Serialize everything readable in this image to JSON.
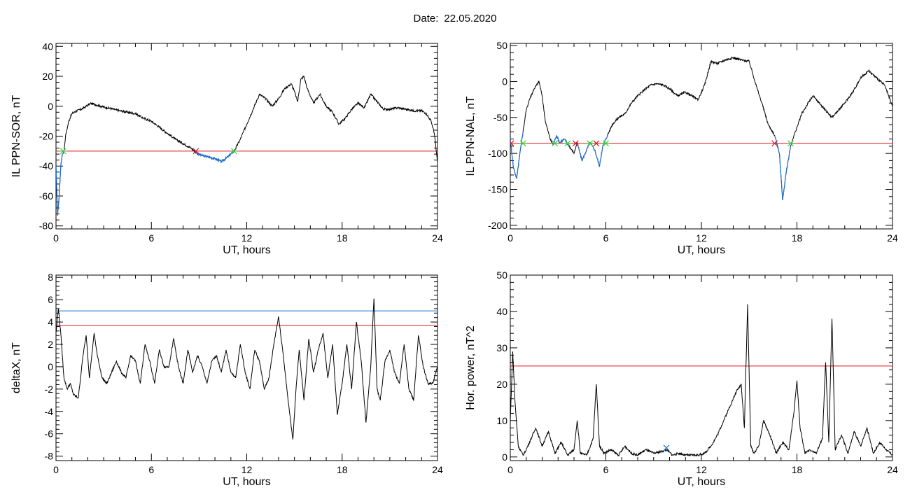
{
  "header": {
    "date_label": "Date:",
    "date_value": "22.05.2020"
  },
  "colors": {
    "trace": "#000000",
    "threshold_red": "#e0141e",
    "threshold_blue": "#1e6fd0",
    "segment_blue": "#1e6fd0",
    "marker_red": "#e0141e",
    "marker_green": "#3ccc3c"
  },
  "chart_data": [
    {
      "type": "line",
      "title": "",
      "xlabel": "UT, hours",
      "ylabel": "IL PPN-SOR, nT",
      "xlim": [
        0,
        24
      ],
      "ylim": [
        -82,
        42
      ],
      "xticks": [
        0,
        6,
        12,
        18,
        24
      ],
      "xtick_labels": [
        "0",
        "6",
        "12",
        "18",
        "24"
      ],
      "yticks": [
        -80,
        -60,
        -40,
        -20,
        0,
        20,
        40
      ],
      "ytick_labels": [
        "-80",
        "-60",
        "-40",
        "-20",
        "0",
        "20",
        "40"
      ],
      "grid": false,
      "thresholds": [
        {
          "value": -30,
          "color": "red"
        }
      ],
      "series": [
        {
          "x": [
            0,
            0.1,
            0.2,
            0.3,
            0.4,
            0.5,
            0.6,
            0.8,
            1.0,
            1.3,
            1.6,
            1.9,
            2.2,
            2.5,
            2.8,
            3.2,
            3.6,
            4.0,
            4.5,
            5.0,
            5.5,
            6.0,
            6.5,
            7.0,
            7.5,
            8.0,
            8.5,
            8.8,
            9.2,
            9.6,
            10.0,
            10.4,
            10.8,
            11.2,
            11.6,
            12.0,
            12.4,
            12.8,
            13.2,
            13.6,
            14.0,
            14.4,
            14.8,
            15.0,
            15.2,
            15.4,
            15.6,
            15.8,
            16.2,
            16.6,
            17.0,
            17.4,
            17.8,
            18.2,
            18.6,
            19.0,
            19.4,
            19.8,
            20.2,
            20.6,
            21.0,
            21.5,
            22.0,
            22.5,
            23.0,
            23.3,
            23.6,
            23.8,
            24.0
          ],
          "y": [
            -40,
            -73,
            -60,
            -40,
            -32,
            -30,
            -20,
            -10,
            -5,
            -3,
            -2,
            0,
            2,
            1,
            0,
            -1,
            -2,
            -3,
            -4,
            -5,
            -8,
            -10,
            -14,
            -18,
            -22,
            -25,
            -28,
            -31,
            -33,
            -34,
            -35,
            -37,
            -34,
            -30,
            -22,
            -12,
            -2,
            8,
            5,
            0,
            5,
            12,
            15,
            10,
            3,
            18,
            20,
            12,
            2,
            8,
            0,
            -4,
            -12,
            -8,
            -2,
            2,
            -1,
            8,
            3,
            -2,
            -2,
            -1,
            -2,
            -3,
            -3,
            -5,
            -10,
            -18,
            -38
          ]
        }
      ],
      "highlight_segments": [
        [
          0.0,
          0.5
        ],
        [
          8.8,
          11.2
        ]
      ],
      "markers": [
        {
          "x": 8.8,
          "y": -30,
          "color": "red"
        },
        {
          "x": 0.45,
          "y": -30,
          "color": "green"
        },
        {
          "x": 11.2,
          "y": -30,
          "color": "green"
        }
      ]
    },
    {
      "type": "line",
      "title": "",
      "xlabel": "UT, hours",
      "ylabel": "IL PPN-NAL, nT",
      "xlim": [
        0,
        24
      ],
      "ylim": [
        -205,
        53
      ],
      "xticks": [
        0,
        6,
        12,
        18,
        24
      ],
      "xtick_labels": [
        "0",
        "6",
        "12",
        "18",
        "24"
      ],
      "yticks": [
        -200,
        -150,
        -100,
        -50,
        0,
        50
      ],
      "ytick_labels": [
        "-200",
        "-150",
        "-100",
        "-50",
        "0",
        "50"
      ],
      "grid": false,
      "thresholds": [
        {
          "value": -86,
          "color": "red"
        }
      ],
      "series": [
        {
          "x": [
            0,
            0.2,
            0.4,
            0.6,
            0.8,
            1.0,
            1.2,
            1.5,
            1.8,
            2.0,
            2.2,
            2.5,
            2.7,
            2.9,
            3.1,
            3.4,
            3.7,
            4.0,
            4.2,
            4.5,
            4.8,
            5.0,
            5.3,
            5.6,
            5.8,
            6.1,
            6.4,
            6.8,
            7.2,
            7.6,
            8.0,
            8.4,
            8.8,
            9.2,
            9.6,
            10.0,
            10.5,
            11.0,
            11.4,
            11.8,
            12.2,
            12.6,
            13.0,
            13.5,
            14.0,
            14.5,
            15.0,
            15.5,
            15.8,
            16.2,
            16.6,
            16.9,
            17.1,
            17.3,
            17.6,
            17.9,
            18.3,
            18.7,
            19.0,
            19.4,
            19.8,
            20.2,
            20.6,
            21.0,
            21.5,
            22.0,
            22.5,
            23.0,
            23.5,
            24.0
          ],
          "y": [
            -80,
            -120,
            -135,
            -100,
            -70,
            -40,
            -25,
            -10,
            0,
            -20,
            -55,
            -80,
            -88,
            -75,
            -85,
            -80,
            -90,
            -100,
            -85,
            -110,
            -95,
            -85,
            -95,
            -118,
            -90,
            -75,
            -60,
            -50,
            -45,
            -30,
            -20,
            -12,
            -5,
            -3,
            -5,
            -10,
            -20,
            -15,
            -20,
            -25,
            -5,
            28,
            25,
            30,
            33,
            30,
            28,
            -10,
            -30,
            -60,
            -75,
            -100,
            -165,
            -130,
            -90,
            -70,
            -45,
            -30,
            -20,
            -30,
            -40,
            -50,
            -40,
            -30,
            -15,
            5,
            15,
            5,
            -5,
            -35
          ]
        }
      ],
      "highlight_segments": [
        [
          0.0,
          0.8
        ],
        [
          2.7,
          3.7
        ],
        [
          4.2,
          6.1
        ],
        [
          16.6,
          17.6
        ]
      ],
      "markers": [
        {
          "x": 0.05,
          "y": -86,
          "color": "red"
        },
        {
          "x": 4.1,
          "y": -86,
          "color": "red"
        },
        {
          "x": 5.4,
          "y": -86,
          "color": "red"
        },
        {
          "x": 16.6,
          "y": -86,
          "color": "red"
        },
        {
          "x": 0.8,
          "y": -86,
          "color": "green"
        },
        {
          "x": 2.8,
          "y": -86,
          "color": "green"
        },
        {
          "x": 3.6,
          "y": -86,
          "color": "green"
        },
        {
          "x": 5.0,
          "y": -86,
          "color": "green"
        },
        {
          "x": 6.0,
          "y": -86,
          "color": "green"
        },
        {
          "x": 17.6,
          "y": -86,
          "color": "green"
        }
      ]
    },
    {
      "type": "line",
      "title": "",
      "xlabel": "UT, hours",
      "ylabel": "deltaX, nT",
      "xlim": [
        0,
        24
      ],
      "ylim": [
        -8.4,
        8.2
      ],
      "xticks": [
        0,
        6,
        12,
        18,
        24
      ],
      "xtick_labels": [
        "0",
        "6",
        "12",
        "18",
        "24"
      ],
      "yticks": [
        -8,
        -6,
        -4,
        -2,
        0,
        2,
        4,
        6,
        8
      ],
      "ytick_labels": [
        "-8",
        "-6",
        "-4",
        "-2",
        "0",
        "2",
        "4",
        "6",
        "8"
      ],
      "grid": false,
      "thresholds": [
        {
          "value": 5.0,
          "color": "blue"
        },
        {
          "value": 3.7,
          "color": "red"
        }
      ],
      "series": [
        {
          "x": [
            0,
            0.15,
            0.3,
            0.5,
            0.7,
            0.9,
            1.1,
            1.4,
            1.7,
            1.9,
            2.1,
            2.4,
            2.6,
            2.9,
            3.2,
            3.5,
            3.8,
            4.1,
            4.4,
            4.7,
            5.0,
            5.3,
            5.6,
            5.9,
            6.2,
            6.5,
            6.8,
            7.1,
            7.4,
            7.7,
            8.0,
            8.3,
            8.6,
            8.9,
            9.2,
            9.5,
            9.8,
            10.1,
            10.4,
            10.7,
            11.0,
            11.3,
            11.6,
            11.9,
            12.2,
            12.5,
            12.8,
            13.1,
            13.4,
            13.7,
            14.0,
            14.3,
            14.6,
            14.9,
            15.1,
            15.3,
            15.6,
            15.9,
            16.2,
            16.5,
            16.8,
            17.1,
            17.4,
            17.7,
            18.0,
            18.3,
            18.6,
            18.9,
            19.2,
            19.5,
            19.8,
            20.0,
            20.2,
            20.4,
            20.7,
            21.0,
            21.3,
            21.6,
            21.9,
            22.2,
            22.5,
            22.8,
            23.1,
            23.4,
            23.7,
            24.0
          ],
          "y": [
            3,
            5.2,
            3,
            -1,
            -2,
            -1.5,
            -2.5,
            -2.8,
            1,
            2.8,
            -1,
            3,
            1,
            -1,
            -1.5,
            -0.5,
            0.5,
            -0.5,
            -1,
            1,
            0.5,
            -1.5,
            2,
            0.5,
            -1.5,
            1.5,
            0,
            0,
            2.5,
            0,
            -1.5,
            1.5,
            -0.5,
            1,
            0,
            -1.5,
            0.5,
            1,
            -0.5,
            1.5,
            -0.5,
            -1,
            2,
            -0.5,
            -2,
            1.5,
            0.5,
            -2,
            -1,
            2,
            4.5,
            1,
            -3,
            -6.5,
            -2,
            1.5,
            -3,
            2.5,
            -0.5,
            1.5,
            3,
            -1,
            2,
            -4.3,
            -1.5,
            2,
            -2,
            4,
            0.5,
            -5,
            0,
            6.1,
            -2,
            -3,
            0.5,
            1.5,
            -0.5,
            -1.5,
            2,
            -2,
            -3,
            2.8,
            0,
            -1.5,
            -1.5,
            0
          ]
        }
      ]
    },
    {
      "type": "line",
      "title": "",
      "xlabel": "UT, hours",
      "ylabel": "Hor. power, nT^2",
      "xlim": [
        0,
        24
      ],
      "ylim": [
        -1,
        50
      ],
      "xticks": [
        0,
        6,
        12,
        18,
        24
      ],
      "xtick_labels": [
        "0",
        "6",
        "12",
        "18",
        "24"
      ],
      "yticks": [
        0,
        10,
        20,
        30,
        40,
        50
      ],
      "ytick_labels": [
        "0",
        "10",
        "20",
        "30",
        "40",
        "50"
      ],
      "grid": false,
      "thresholds": [
        {
          "value": 25,
          "color": "red"
        }
      ],
      "series": [
        {
          "x": [
            0,
            0.15,
            0.3,
            0.5,
            0.8,
            1.0,
            1.3,
            1.6,
            2.0,
            2.4,
            2.8,
            3.2,
            3.6,
            4.0,
            4.2,
            4.4,
            4.8,
            5.2,
            5.4,
            5.6,
            5.9,
            6.3,
            6.8,
            7.2,
            7.6,
            8.0,
            8.5,
            9.0,
            9.5,
            9.8,
            10.2,
            10.6,
            11.0,
            11.4,
            11.8,
            12.2,
            12.6,
            13.0,
            13.4,
            13.8,
            14.2,
            14.5,
            14.7,
            14.9,
            15.1,
            15.3,
            15.6,
            15.9,
            16.3,
            16.7,
            17.1,
            17.5,
            17.8,
            18.0,
            18.2,
            18.5,
            18.8,
            19.2,
            19.6,
            19.8,
            20.0,
            20.2,
            20.4,
            20.8,
            21.2,
            21.6,
            22.0,
            22.4,
            22.8,
            23.2,
            23.6,
            24.0
          ],
          "y": [
            10,
            29,
            15,
            3,
            0.5,
            2,
            5,
            8,
            3,
            7,
            1,
            4,
            0.5,
            2,
            10,
            1,
            0.5,
            5,
            20,
            3,
            1,
            2,
            0.5,
            3,
            1,
            0.5,
            2,
            1,
            1.5,
            2,
            0.5,
            1,
            0.5,
            0.5,
            0.5,
            1,
            3,
            6,
            10,
            14,
            18,
            20,
            8,
            42,
            3,
            1,
            3,
            10,
            6,
            1,
            4,
            2,
            12,
            21,
            8,
            1,
            2,
            1,
            5,
            26,
            4,
            38,
            2,
            6,
            1,
            7,
            3,
            8,
            1,
            4,
            2,
            0.5
          ]
        }
      ],
      "markers": [
        {
          "x": 9.8,
          "y": 2.5,
          "color": "blue"
        }
      ]
    }
  ]
}
